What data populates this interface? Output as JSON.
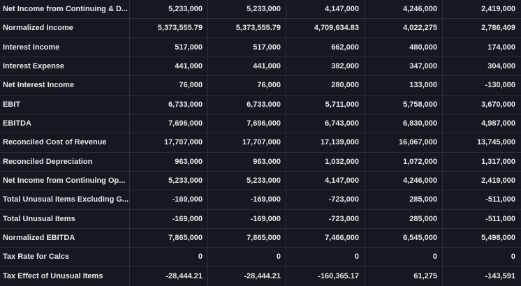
{
  "table": {
    "rows": [
      {
        "label": "Net Income from Continuing & D...",
        "values": [
          "5,233,000",
          "5,233,000",
          "4,147,000",
          "4,246,000",
          "2,419,000"
        ]
      },
      {
        "label": "Normalized Income",
        "values": [
          "5,373,555.79",
          "5,373,555.79",
          "4,709,634.83",
          "4,022,275",
          "2,786,409"
        ]
      },
      {
        "label": "Interest Income",
        "values": [
          "517,000",
          "517,000",
          "662,000",
          "480,000",
          "174,000"
        ]
      },
      {
        "label": "Interest Expense",
        "values": [
          "441,000",
          "441,000",
          "382,000",
          "347,000",
          "304,000"
        ]
      },
      {
        "label": "Net Interest Income",
        "values": [
          "76,000",
          "76,000",
          "280,000",
          "133,000",
          "-130,000"
        ]
      },
      {
        "label": "EBIT",
        "values": [
          "6,733,000",
          "6,733,000",
          "5,711,000",
          "5,758,000",
          "3,670,000"
        ]
      },
      {
        "label": "EBITDA",
        "values": [
          "7,696,000",
          "7,696,000",
          "6,743,000",
          "6,830,000",
          "4,987,000"
        ]
      },
      {
        "label": "Reconciled Cost of Revenue",
        "values": [
          "17,707,000",
          "17,707,000",
          "17,139,000",
          "16,067,000",
          "13,745,000"
        ]
      },
      {
        "label": "Reconciled Depreciation",
        "values": [
          "963,000",
          "963,000",
          "1,032,000",
          "1,072,000",
          "1,317,000"
        ]
      },
      {
        "label": "Net Income from Continuing Op...",
        "values": [
          "5,233,000",
          "5,233,000",
          "4,147,000",
          "4,246,000",
          "2,419,000"
        ]
      },
      {
        "label": "Total Unusual Items Excluding G...",
        "values": [
          "-169,000",
          "-169,000",
          "-723,000",
          "285,000",
          "-511,000"
        ]
      },
      {
        "label": "Total Unusual Items",
        "values": [
          "-169,000",
          "-169,000",
          "-723,000",
          "285,000",
          "-511,000"
        ]
      },
      {
        "label": "Normalized EBITDA",
        "values": [
          "7,865,000",
          "7,865,000",
          "7,466,000",
          "6,545,000",
          "5,498,000"
        ]
      },
      {
        "label": "Tax Rate for Calcs",
        "values": [
          "0",
          "0",
          "0",
          "0",
          "0"
        ]
      },
      {
        "label": "Tax Effect of Unusual Items",
        "values": [
          "-28,444.21",
          "-28,444.21",
          "-160,365.17",
          "61,275",
          "-143,591"
        ]
      }
    ]
  }
}
